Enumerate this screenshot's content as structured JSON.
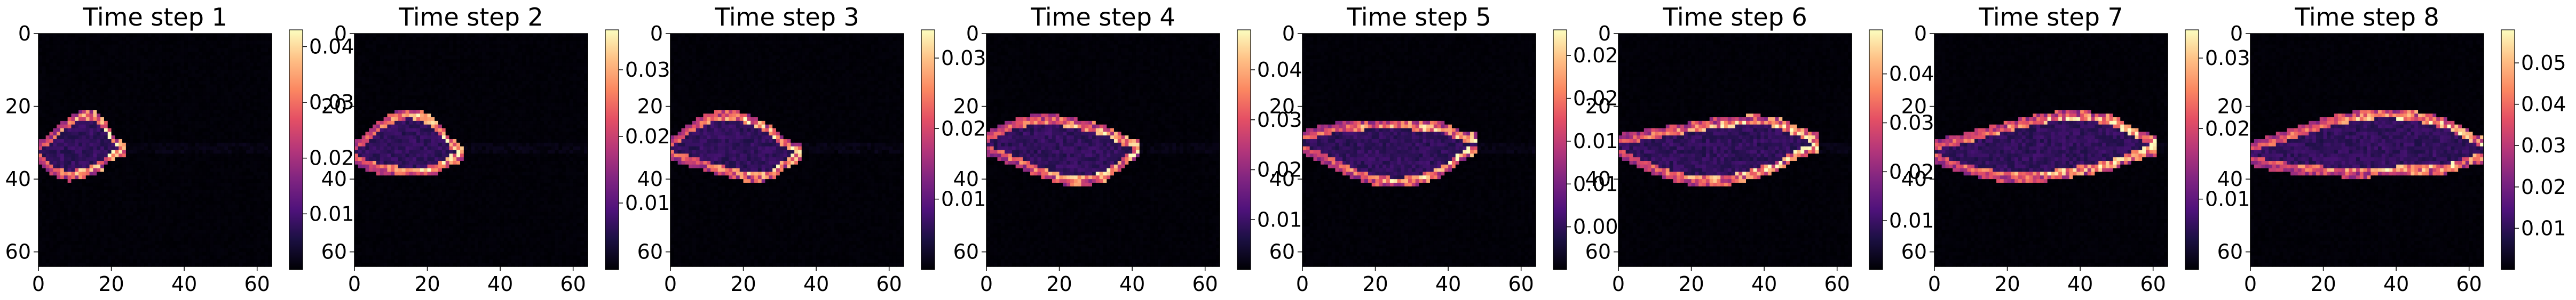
{
  "figure": {
    "panel_count": 8
  },
  "chart_data": [
    {
      "type": "heatmap",
      "title": "Time step 1",
      "xlabel": "",
      "ylabel": "",
      "xlim": [
        0,
        64
      ],
      "ylim": [
        64,
        0
      ],
      "xticks": [
        "0",
        "20",
        "40",
        "60"
      ],
      "yticks": [
        "0",
        "20",
        "40",
        "60"
      ],
      "colormap": "magma",
      "colorbar": {
        "min": 0.0,
        "max": 0.043,
        "ticks": [
          "0.01",
          "0.02",
          "0.03",
          "0.04"
        ]
      }
    },
    {
      "type": "heatmap",
      "title": "Time step 2",
      "xlabel": "",
      "ylabel": "",
      "xlim": [
        0,
        64
      ],
      "ylim": [
        64,
        0
      ],
      "xticks": [
        "0",
        "20",
        "40",
        "60"
      ],
      "yticks": [
        "0",
        "20",
        "40",
        "60"
      ],
      "colormap": "magma",
      "colorbar": {
        "min": 0.0,
        "max": 0.036,
        "ticks": [
          "0.01",
          "0.02",
          "0.03"
        ]
      }
    },
    {
      "type": "heatmap",
      "title": "Time step 3",
      "xlabel": "",
      "ylabel": "",
      "xlim": [
        0,
        64
      ],
      "ylim": [
        64,
        0
      ],
      "xticks": [
        "0",
        "20",
        "40",
        "60"
      ],
      "yticks": [
        "0",
        "20",
        "40",
        "60"
      ],
      "colormap": "magma",
      "colorbar": {
        "min": 0.0,
        "max": 0.034,
        "ticks": [
          "0.01",
          "0.02",
          "0.03"
        ]
      }
    },
    {
      "type": "heatmap",
      "title": "Time step 4",
      "xlabel": "",
      "ylabel": "",
      "xlim": [
        0,
        64
      ],
      "ylim": [
        64,
        0
      ],
      "xticks": [
        "0",
        "20",
        "40",
        "60"
      ],
      "yticks": [
        "0",
        "20",
        "40",
        "60"
      ],
      "colormap": "magma",
      "colorbar": {
        "min": 0.0,
        "max": 0.048,
        "ticks": [
          "0.01",
          "0.02",
          "0.03",
          "0.04"
        ]
      }
    },
    {
      "type": "heatmap",
      "title": "Time step 5",
      "xlabel": "",
      "ylabel": "",
      "xlim": [
        0,
        64
      ],
      "ylim": [
        64,
        0
      ],
      "xticks": [
        "0",
        "20",
        "40",
        "60"
      ],
      "yticks": [
        "0",
        "20",
        "40",
        "60"
      ],
      "colormap": "magma",
      "colorbar": {
        "min": 0.0,
        "max": 0.028,
        "ticks": [
          "0.005",
          "0.010",
          "0.015",
          "0.020",
          "0.025"
        ]
      }
    },
    {
      "type": "heatmap",
      "title": "Time step 6",
      "xlabel": "",
      "ylabel": "",
      "xlim": [
        0,
        64
      ],
      "ylim": [
        64,
        0
      ],
      "xticks": [
        "0",
        "20",
        "40",
        "60"
      ],
      "yticks": [
        "0",
        "20",
        "40",
        "60"
      ],
      "colormap": "magma",
      "colorbar": {
        "min": 0.0,
        "max": 0.049,
        "ticks": [
          "0.01",
          "0.02",
          "0.03",
          "0.04"
        ]
      }
    },
    {
      "type": "heatmap",
      "title": "Time step 7",
      "xlabel": "",
      "ylabel": "",
      "xlim": [
        0,
        64
      ],
      "ylim": [
        64,
        0
      ],
      "xticks": [
        "0",
        "20",
        "40",
        "60"
      ],
      "yticks": [
        "0",
        "20",
        "40",
        "60"
      ],
      "colormap": "magma",
      "colorbar": {
        "min": 0.0,
        "max": 0.034,
        "ticks": [
          "0.01",
          "0.02",
          "0.03"
        ]
      }
    },
    {
      "type": "heatmap",
      "title": "Time step 8",
      "xlabel": "",
      "ylabel": "",
      "xlim": [
        0,
        64
      ],
      "ylim": [
        64,
        0
      ],
      "xticks": [
        "0",
        "20",
        "40",
        "60"
      ],
      "yticks": [
        "0",
        "20",
        "40",
        "60"
      ],
      "colormap": "magma",
      "colorbar": {
        "min": 0.0,
        "max": 0.058,
        "ticks": [
          "0.01",
          "0.02",
          "0.03",
          "0.04",
          "0.05"
        ]
      }
    }
  ]
}
